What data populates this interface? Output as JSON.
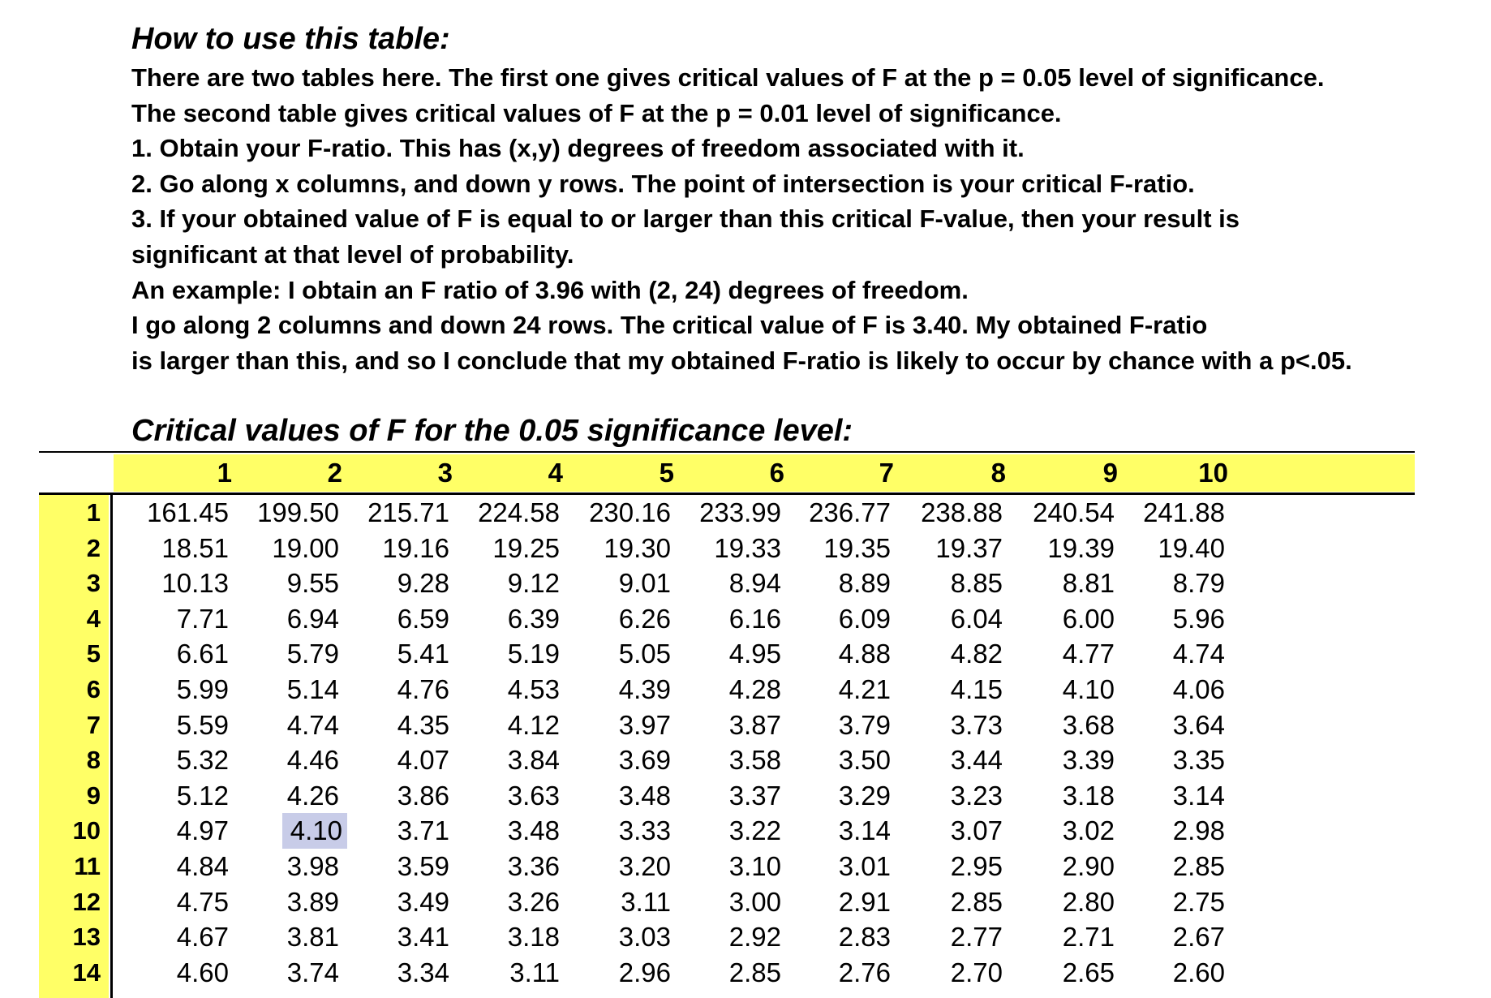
{
  "instructions": {
    "heading": "How to use this table:",
    "lines": [
      "There are two tables here. The first one gives critical values of F at the p = 0.05 level of significance.",
      "The second table gives critical values of F at the p = 0.01 level of significance.",
      "1. Obtain your F-ratio. This has (x,y) degrees of freedom associated with it.",
      "2. Go along x columns, and down y rows. The point of intersection is your critical F-ratio.",
      "3. If your obtained value of F is equal to or larger than this critical F-value, then your result is",
      "significant at that level of probability.",
      "An example: I obtain an F ratio of 3.96 with (2, 24) degrees of freedom.",
      "I go along 2 columns and down 24 rows. The critical value of F is 3.40. My obtained F-ratio",
      "is larger than this, and so I conclude that my obtained F-ratio is likely to occur by chance with a p<.05."
    ]
  },
  "table": {
    "title": "Critical values of F for the 0.05 significance level:",
    "columns": [
      "1",
      "2",
      "3",
      "4",
      "5",
      "6",
      "7",
      "8",
      "9",
      "10"
    ],
    "highlight_color": "#ffff66",
    "selected_cell": {
      "row": 9,
      "col": 1,
      "color": "#c8cce8"
    },
    "rows": [
      {
        "label": "1",
        "values": [
          "161.45",
          "199.50",
          "215.71",
          "224.58",
          "230.16",
          "233.99",
          "236.77",
          "238.88",
          "240.54",
          "241.88"
        ]
      },
      {
        "label": "2",
        "values": [
          "18.51",
          "19.00",
          "19.16",
          "19.25",
          "19.30",
          "19.33",
          "19.35",
          "19.37",
          "19.39",
          "19.40"
        ]
      },
      {
        "label": "3",
        "values": [
          "10.13",
          "9.55",
          "9.28",
          "9.12",
          "9.01",
          "8.94",
          "8.89",
          "8.85",
          "8.81",
          "8.79"
        ]
      },
      {
        "label": "4",
        "values": [
          "7.71",
          "6.94",
          "6.59",
          "6.39",
          "6.26",
          "6.16",
          "6.09",
          "6.04",
          "6.00",
          "5.96"
        ]
      },
      {
        "label": "5",
        "values": [
          "6.61",
          "5.79",
          "5.41",
          "5.19",
          "5.05",
          "4.95",
          "4.88",
          "4.82",
          "4.77",
          "4.74"
        ]
      },
      {
        "label": "6",
        "values": [
          "5.99",
          "5.14",
          "4.76",
          "4.53",
          "4.39",
          "4.28",
          "4.21",
          "4.15",
          "4.10",
          "4.06"
        ]
      },
      {
        "label": "7",
        "values": [
          "5.59",
          "4.74",
          "4.35",
          "4.12",
          "3.97",
          "3.87",
          "3.79",
          "3.73",
          "3.68",
          "3.64"
        ]
      },
      {
        "label": "8",
        "values": [
          "5.32",
          "4.46",
          "4.07",
          "3.84",
          "3.69",
          "3.58",
          "3.50",
          "3.44",
          "3.39",
          "3.35"
        ]
      },
      {
        "label": "9",
        "values": [
          "5.12",
          "4.26",
          "3.86",
          "3.63",
          "3.48",
          "3.37",
          "3.29",
          "3.23",
          "3.18",
          "3.14"
        ]
      },
      {
        "label": "10",
        "values": [
          "4.97",
          "4.10",
          "3.71",
          "3.48",
          "3.33",
          "3.22",
          "3.14",
          "3.07",
          "3.02",
          "2.98"
        ]
      },
      {
        "label": "11",
        "values": [
          "4.84",
          "3.98",
          "3.59",
          "3.36",
          "3.20",
          "3.10",
          "3.01",
          "2.95",
          "2.90",
          "2.85"
        ]
      },
      {
        "label": "12",
        "values": [
          "4.75",
          "3.89",
          "3.49",
          "3.26",
          "3.11",
          "3.00",
          "2.91",
          "2.85",
          "2.80",
          "2.75"
        ]
      },
      {
        "label": "13",
        "values": [
          "4.67",
          "3.81",
          "3.41",
          "3.18",
          "3.03",
          "2.92",
          "2.83",
          "2.77",
          "2.71",
          "2.67"
        ]
      },
      {
        "label": "14",
        "values": [
          "4.60",
          "3.74",
          "3.34",
          "3.11",
          "2.96",
          "2.85",
          "2.76",
          "2.70",
          "2.65",
          "2.60"
        ]
      }
    ]
  }
}
